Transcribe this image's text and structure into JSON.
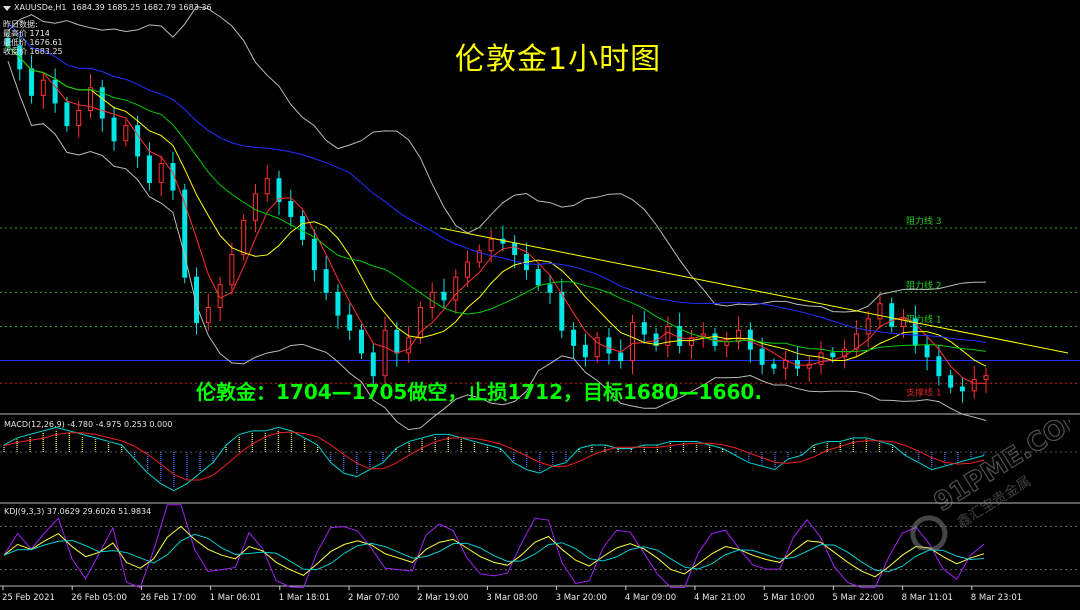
{
  "header": {
    "symbol_line": "XAUUSDe,H1",
    "ohlc_values": "1684.39 1685.25 1682.79 1683.36"
  },
  "prev_day": {
    "title": "昨日数据:",
    "rows": [
      "最高价 1714",
      "最低价 1676.61",
      "收盘价 1683.25"
    ]
  },
  "title": "伦敦金1小时图",
  "trade_note": "伦敦金：1704—1705做空，止损1712，目标1680—1660.",
  "resistance_lines": [
    {
      "label": "阻力线 3",
      "price": 1733
    },
    {
      "label": "阻力线 2",
      "price": 1716
    },
    {
      "label": "阻力线 1",
      "price": 1707
    }
  ],
  "support_line": {
    "label": "支撑线 1",
    "price": 1692
  },
  "macd_label": "MACD(12,26,9) -4.780 -4.975 0.253 0.000",
  "kdj_label": "KDJ(9,3,3) 37.0629 29.6026 51.9834",
  "x_ticks": [
    "25 Feb 2021",
    "26 Feb 05:00",
    "26 Feb 17:00",
    "1 Mar 06:01",
    "1 Mar 18:01",
    "2 Mar 07:00",
    "2 Mar 19:00",
    "3 Mar 08:00",
    "3 Mar 20:00",
    "4 Mar 09:00",
    "4 Mar 21:00",
    "5 Mar 10:00",
    "5 Mar 22:00",
    "8 Mar 11:01",
    "8 Mar 23:01"
  ],
  "watermark": {
    "brand": "91PME.COM",
    "sub": "鑫汇宝贵金属"
  },
  "colors": {
    "up": "#ff3030",
    "down": "#00e6e6",
    "grid": "#2e8b2e",
    "trend": "#ffff00",
    "ma_blue": "#2030ff"
  },
  "chart_data": {
    "type": "candlestick",
    "y_range": [
      1686,
      1790
    ],
    "close_series": [
      1781,
      1775,
      1768,
      1772,
      1766,
      1760,
      1764,
      1770,
      1762,
      1756,
      1760,
      1752,
      1745,
      1750,
      1743,
      1720,
      1708,
      1712,
      1718,
      1726,
      1735,
      1742,
      1746,
      1740,
      1736,
      1730,
      1722,
      1716,
      1710,
      1706,
      1700,
      1694,
      1706,
      1700,
      1704,
      1712,
      1716,
      1714,
      1720,
      1724,
      1727,
      1730,
      1729,
      1726,
      1722,
      1718,
      1716,
      1706,
      1702,
      1699,
      1704,
      1700,
      1698,
      1708,
      1705,
      1702,
      1707,
      1702,
      1704,
      1705,
      1702,
      1703,
      1706,
      1701,
      1697,
      1696,
      1698,
      1696,
      1697,
      1700,
      1699,
      1701,
      1705,
      1709,
      1713,
      1707,
      1709,
      1702,
      1699,
      1694,
      1691,
      1690,
      1693,
      1694
    ],
    "macd": [
      2,
      4,
      5,
      6,
      7,
      6,
      5,
      4,
      3,
      2,
      -2,
      -6,
      -9,
      -11,
      -9,
      -6,
      -3,
      2,
      5,
      6,
      6,
      7,
      6,
      4,
      2,
      -3,
      -6,
      -7,
      -5,
      -3,
      1,
      3,
      4,
      5,
      5,
      4,
      3,
      2,
      1,
      -3,
      -5,
      -6,
      -4,
      -3,
      1,
      2,
      2,
      1,
      1,
      2,
      2,
      3,
      3,
      3,
      2,
      1,
      -1,
      -3,
      -4,
      -5,
      -2,
      -1,
      2,
      3,
      3,
      4,
      4,
      3,
      2,
      -1,
      -3,
      -5,
      -4,
      -3,
      -2,
      -1
    ],
    "kdj": [
      40,
      55,
      48,
      60,
      70,
      52,
      38,
      44,
      57,
      30,
      22,
      35,
      65,
      80,
      62,
      48,
      40,
      35,
      52,
      46,
      30,
      20,
      12,
      28,
      45,
      55,
      60,
      54,
      42,
      36,
      30,
      48,
      58,
      62,
      50,
      38,
      30,
      26,
      40,
      58,
      66,
      48,
      33,
      25,
      38,
      50,
      56,
      49,
      36,
      20,
      14,
      28,
      42,
      52,
      48,
      40,
      34,
      30,
      46,
      60,
      58,
      44,
      30,
      18,
      10,
      24,
      40,
      52,
      50,
      38,
      28,
      36,
      42
    ]
  }
}
